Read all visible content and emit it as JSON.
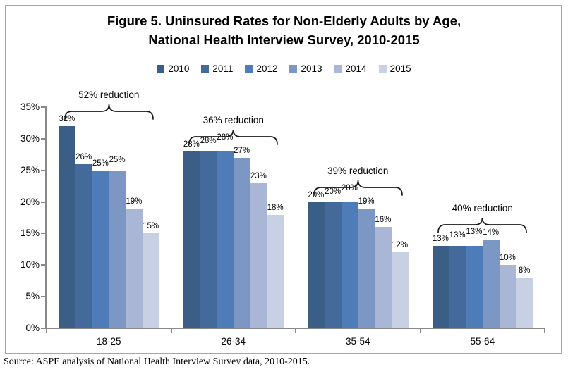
{
  "title": {
    "line1": "Figure 5. Uninsured Rates for Non-Elderly Adults by Age,",
    "line2": "National Health Interview Survey, 2010-2015"
  },
  "source": {
    "text": "Source: ASPE analysis of National Health Interview Survey data, 2010-2015."
  },
  "colors": {
    "axis": "#898989",
    "frame_border": "#A6A6A6",
    "text": "#000000"
  },
  "chart_data": {
    "type": "bar",
    "title": "Figure 5. Uninsured Rates for Non-Elderly Adults by Age, National Health Interview Survey, 2010-2015",
    "xlabel": "",
    "ylabel": "",
    "ylim": [
      0,
      35
    ],
    "grid": false,
    "legend_position": "top",
    "data_label_format": "{v}%",
    "y_ticks": [
      {
        "value": 35,
        "label": "35%"
      },
      {
        "value": 30,
        "label": "30%"
      },
      {
        "value": 25,
        "label": "25%"
      },
      {
        "value": 20,
        "label": "20%"
      },
      {
        "value": 15,
        "label": "15%"
      },
      {
        "value": 10,
        "label": "10%"
      },
      {
        "value": 5,
        "label": "5%"
      },
      {
        "value": 0,
        "label": "0%"
      }
    ],
    "categories": [
      "18-25",
      "26-34",
      "35-54",
      "55-64"
    ],
    "series": [
      {
        "name": "2010",
        "color": "#3A5E86",
        "values": [
          32,
          28,
          20,
          13
        ]
      },
      {
        "name": "2011",
        "color": "#44699B",
        "values": [
          26,
          28,
          20,
          13
        ]
      },
      {
        "name": "2012",
        "color": "#4E7CB9",
        "values": [
          25,
          28,
          20,
          13
        ]
      },
      {
        "name": "2013",
        "color": "#7D97C5",
        "values": [
          25,
          27,
          19,
          14
        ]
      },
      {
        "name": "2014",
        "color": "#A9B6D6",
        "values": [
          19,
          23,
          16,
          10
        ]
      },
      {
        "name": "2015",
        "color": "#C8D0E4",
        "values": [
          15,
          18,
          12,
          8
        ]
      }
    ],
    "annotations": [
      {
        "category": "18-25",
        "label": "52% reduction"
      },
      {
        "category": "26-34",
        "label": "36% reduction"
      },
      {
        "category": "35-54",
        "label": "39% reduction"
      },
      {
        "category": "55-64",
        "label": "40% reduction"
      }
    ]
  }
}
